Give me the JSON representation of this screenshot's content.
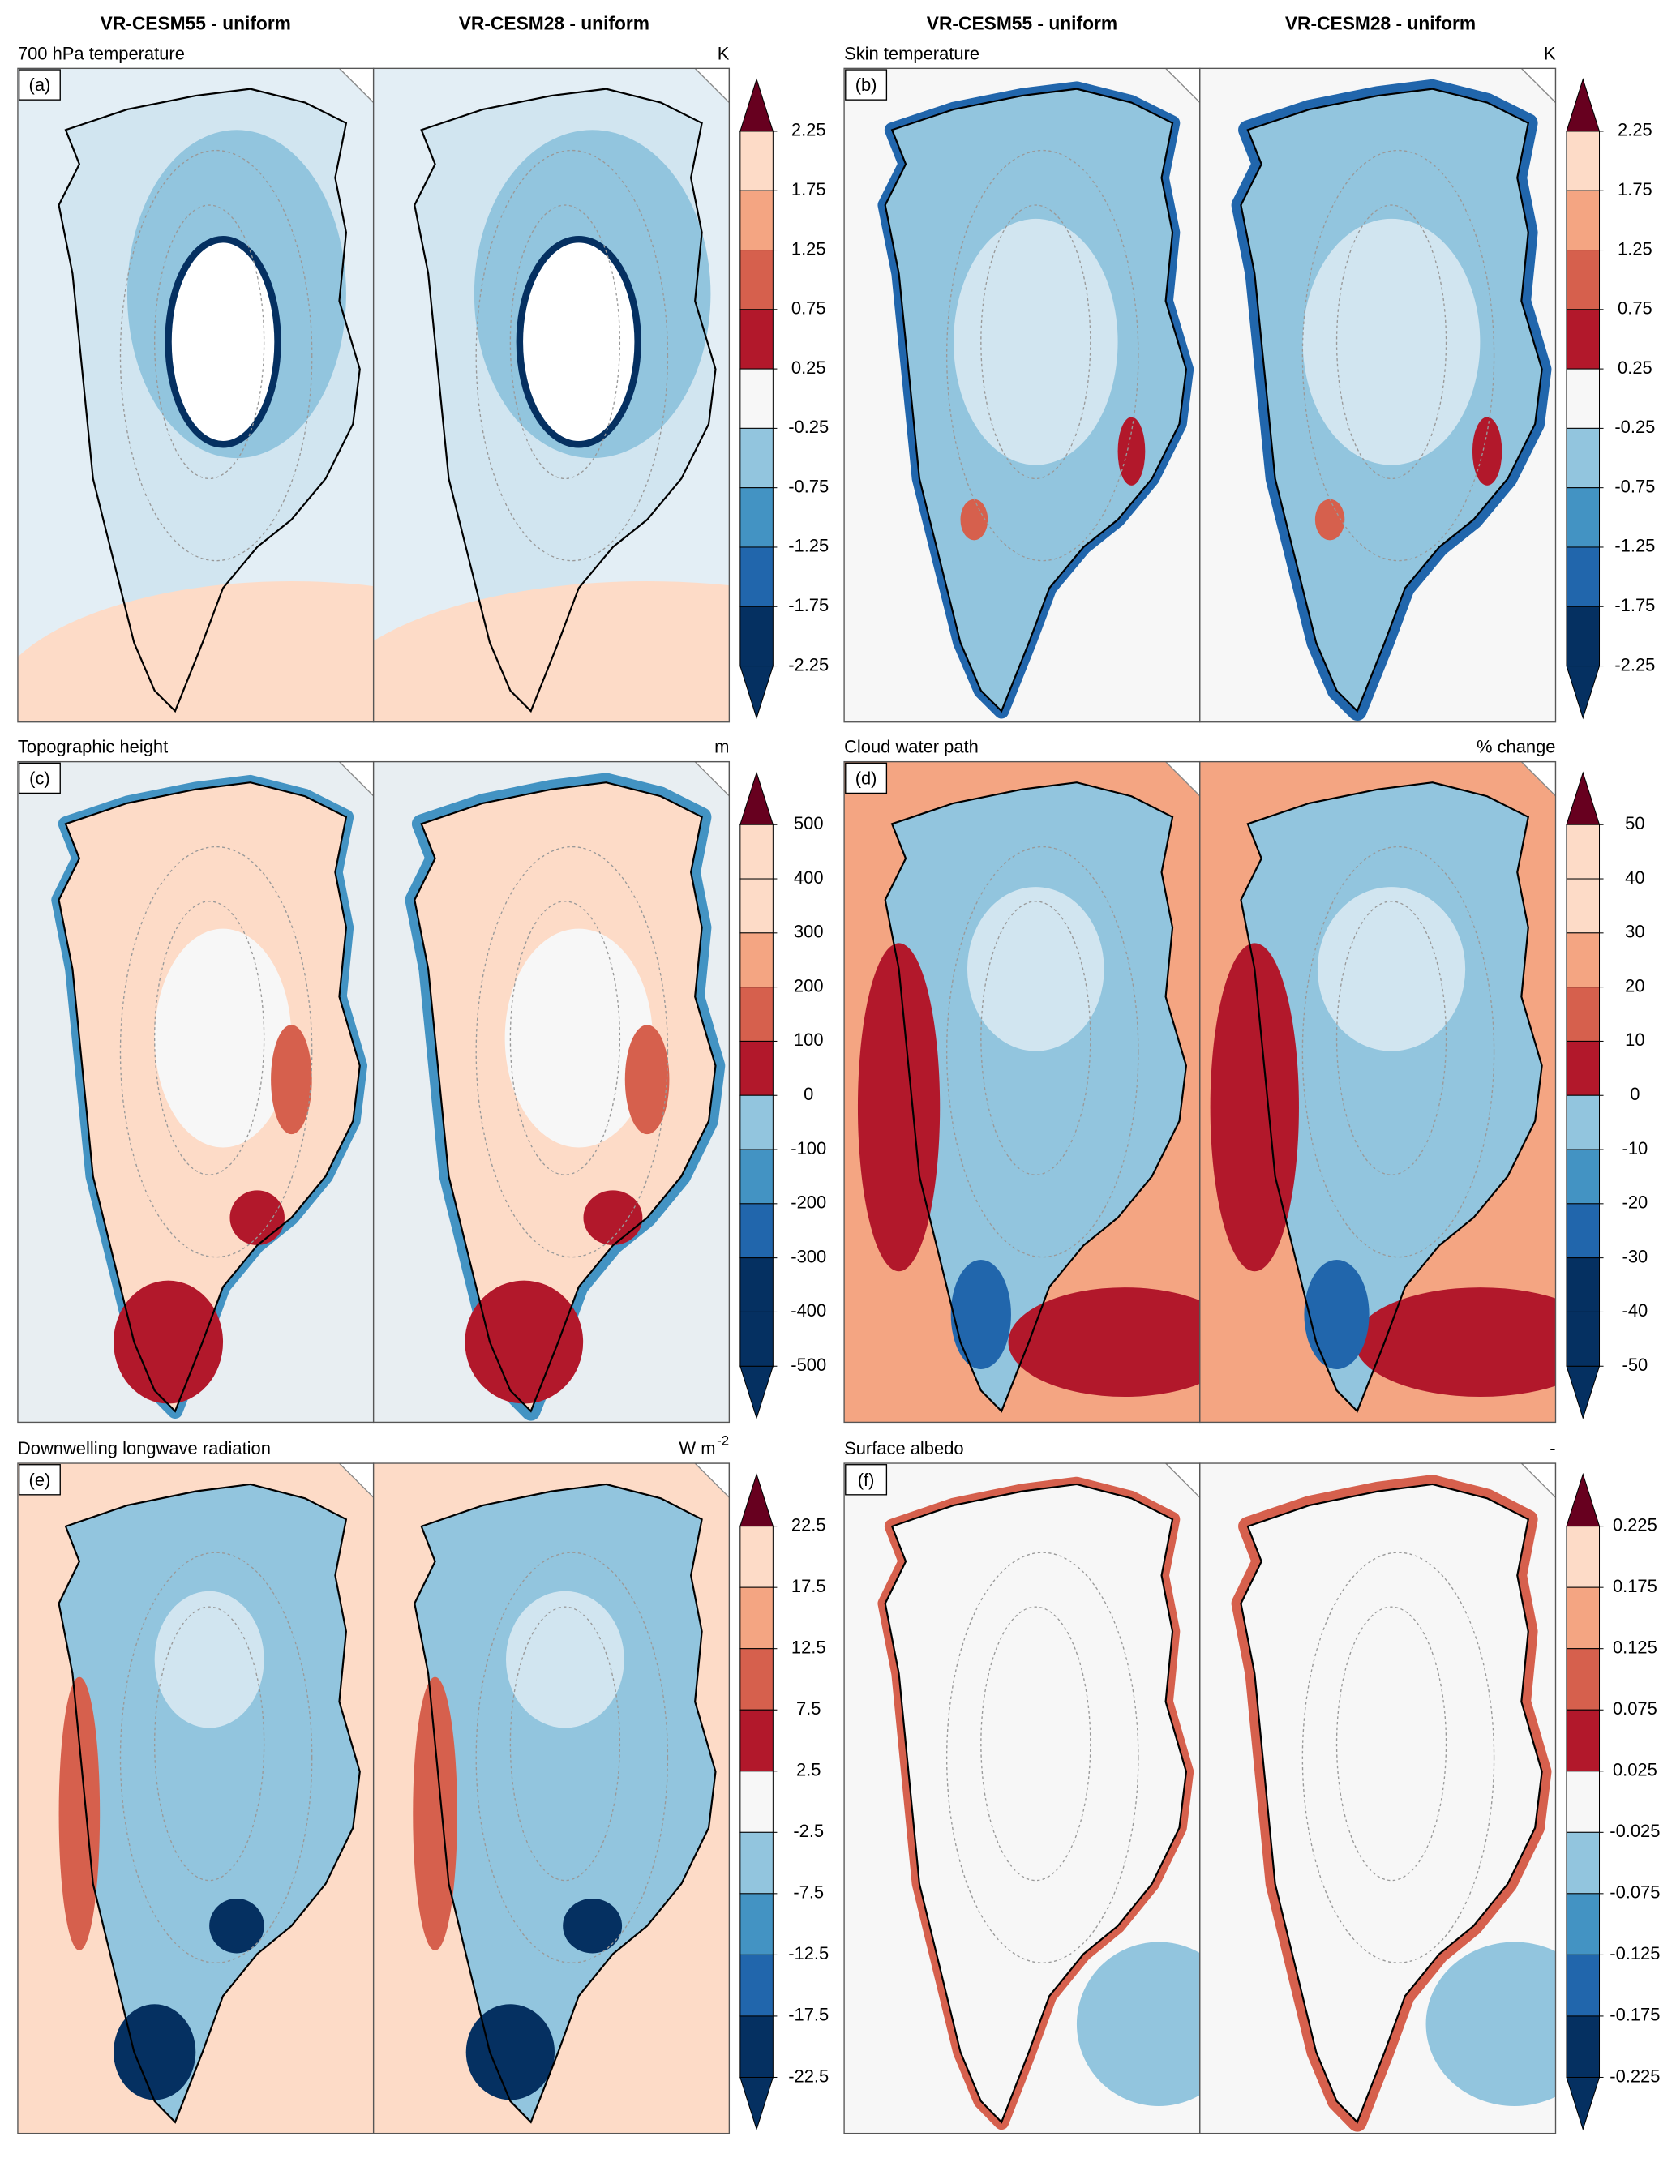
{
  "figure": {
    "column_titles": [
      "VR-CESM55 - uniform",
      "VR-CESM28 - uniform"
    ],
    "panels": [
      {
        "label": "(a)",
        "title": "700 hPa temperature",
        "units": "K",
        "colorbar": {
          "ylim": [
            -2.25,
            2.25
          ],
          "yticks": [
            2.25,
            1.75,
            1.25,
            0.75,
            0.25,
            -0.25,
            -0.75,
            -1.25,
            -1.75,
            -2.25
          ]
        }
      },
      {
        "label": "(b)",
        "title": "Skin temperature",
        "units": "K",
        "colorbar": {
          "ylim": [
            -2.25,
            2.25
          ],
          "yticks": [
            2.25,
            1.75,
            1.25,
            0.75,
            0.25,
            -0.25,
            -0.75,
            -1.25,
            -1.75,
            -2.25
          ]
        }
      },
      {
        "label": "(c)",
        "title": "Topographic height",
        "units": "m",
        "colorbar": {
          "ylim": [
            -500,
            500
          ],
          "yticks": [
            500,
            400,
            300,
            200,
            100,
            0,
            -100,
            -200,
            -300,
            -400,
            -500
          ]
        }
      },
      {
        "label": "(d)",
        "title": "Cloud water path",
        "units": "% change",
        "colorbar": {
          "ylim": [
            -50,
            50
          ],
          "yticks": [
            50,
            40,
            30,
            20,
            10,
            0,
            -10,
            -20,
            -30,
            -40,
            -50
          ]
        }
      },
      {
        "label": "(e)",
        "title": "Downwelling longwave radiation",
        "units": "W m",
        "units_superscript": "-2",
        "colorbar": {
          "ylim": [
            -22.5,
            22.5
          ],
          "yticks": [
            22.5,
            17.5,
            12.5,
            7.5,
            2.5,
            -2.5,
            -7.5,
            -12.5,
            -17.5,
            -22.5
          ]
        }
      },
      {
        "label": "(f)",
        "title": "Surface albedo",
        "units": "-",
        "colorbar": {
          "ylim": [
            -0.225,
            0.225
          ],
          "yticks": [
            0.225,
            0.175,
            0.125,
            0.075,
            0.025,
            -0.025,
            -0.075,
            -0.125,
            -0.175,
            -0.225
          ]
        }
      }
    ]
  }
}
